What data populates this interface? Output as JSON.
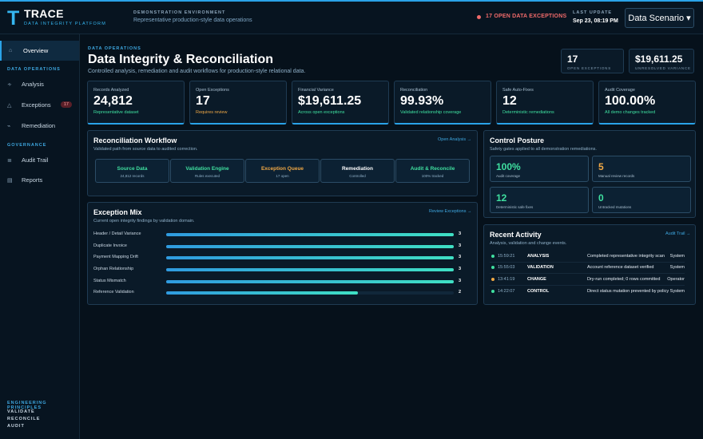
{
  "brand": {
    "logo_letter": "T",
    "name": "TRACE",
    "tagline": "DATA INTEGRITY PLATFORM",
    "accent": "#2aa3e8"
  },
  "header": {
    "env_label": "DEMONSTRATION ENVIRONMENT",
    "env_desc": "Representative production-style data operations",
    "exceptions_alert": "17 OPEN DATA EXCEPTIONS",
    "last_update_label": "LAST UPDATE",
    "last_update_value": "Sep 23, 08:19 PM",
    "scenario_button": "Data Scenario",
    "scenario_caret": "▾"
  },
  "sidebar": {
    "items": [
      {
        "label": "Overview",
        "icon": "home-icon",
        "glyph": "⌂"
      },
      {
        "label": "Analysis",
        "icon": "analysis-icon",
        "glyph": "∻"
      },
      {
        "label": "Exceptions",
        "icon": "warning-icon",
        "glyph": "△",
        "badge": "17"
      },
      {
        "label": "Remediation",
        "icon": "wrench-icon",
        "glyph": "⌁"
      },
      {
        "label": "Audit Trail",
        "icon": "list-icon",
        "glyph": "≣"
      },
      {
        "label": "Reports",
        "icon": "report-icon",
        "glyph": "▤"
      }
    ],
    "sections": [
      "DATA OPERATIONS",
      "GOVERNANCE"
    ],
    "principles_title": "ENGINEERING PRINCIPLES",
    "principles": [
      "VALIDATE",
      "RECONCILE",
      "AUDIT"
    ]
  },
  "page": {
    "kicker": "DATA OPERATIONS",
    "title": "Data Integrity & Reconciliation",
    "subtitle": "Controlled analysis, remediation and audit workflows for production-style relational data.",
    "summary": [
      {
        "value": "17",
        "label": "OPEN EXCEPTIONS"
      },
      {
        "value": "$19,611.25",
        "label": "UNRESOLVED VARIANCE"
      }
    ]
  },
  "kpis": [
    {
      "label": "Records Analyzed",
      "value": "24,812",
      "sub": "Representative dataset",
      "sub_color": "#3fe0a0"
    },
    {
      "label": "Open Exceptions",
      "value": "17",
      "sub": "Requires review",
      "sub_color": "#f0a845"
    },
    {
      "label": "Financial Variance",
      "value": "$19,611.25",
      "sub": "Across open exceptions",
      "sub_color": "#3fe0a0"
    },
    {
      "label": "Reconciliation",
      "value": "99.93%",
      "sub": "Validated relationship coverage",
      "sub_color": "#3fe0a0"
    },
    {
      "label": "Safe Auto-Fixes",
      "value": "12",
      "sub": "Deterministic remediations",
      "sub_color": "#3fe0a0"
    },
    {
      "label": "Audit Coverage",
      "value": "100.00%",
      "sub": "All demo changes tracked",
      "sub_color": "#3fe0a0"
    }
  ],
  "workflow": {
    "title": "Reconciliation Workflow",
    "subtitle": "Validated path from source data to audited correction.",
    "link": "Open Analysis →",
    "arrow": "→",
    "steps": [
      {
        "name": "Source Data",
        "detail": "24,812 records",
        "color": "#3fe0a0"
      },
      {
        "name": "Validation Engine",
        "detail": "Rules executed",
        "color": "#3fe0a0"
      },
      {
        "name": "Exception Queue",
        "detail": "17 open",
        "color": "#f0a845"
      },
      {
        "name": "Remediation",
        "detail": "Controlled",
        "color": "#ffffff"
      },
      {
        "name": "Audit & Reconcile",
        "detail": "100% tracked",
        "color": "#3fe0a0"
      }
    ]
  },
  "exception_mix": {
    "title": "Exception Mix",
    "subtitle": "Current open integrity findings by validation domain.",
    "link": "Review Exceptions →",
    "max": 3,
    "rows": [
      {
        "label": "Header / Detail Variance",
        "count": 3
      },
      {
        "label": "Duplicate Invoice",
        "count": 3
      },
      {
        "label": "Payment Mapping Drift",
        "count": 3
      },
      {
        "label": "Orphan Relationship",
        "count": 3
      },
      {
        "label": "Status Mismatch",
        "count": 3
      },
      {
        "label": "Reference Validation",
        "count": 2
      }
    ]
  },
  "posture": {
    "title": "Control Posture",
    "subtitle": "Safety gates applied to all demonstration remediations.",
    "items": [
      {
        "value": "100%",
        "label": "Audit coverage",
        "color": "#3fe0a0"
      },
      {
        "value": "5",
        "label": "Manual review records",
        "color": "#f0a845"
      },
      {
        "value": "12",
        "label": "Deterministic safe fixes",
        "color": "#3fe0a0"
      },
      {
        "value": "0",
        "label": "Untracked mutations",
        "color": "#3fe0a0"
      }
    ]
  },
  "activity": {
    "title": "Recent Activity",
    "subtitle": "Analysis, validation and change events.",
    "link": "Audit Trail →",
    "rows": [
      {
        "time": "15:59:21",
        "type": "ANALYSIS",
        "desc": "Completed representative integrity scan",
        "actor": "System",
        "dot": "#3fe0a0"
      },
      {
        "time": "15:55:03",
        "type": "VALIDATION",
        "desc": "Account reference dataset verified",
        "actor": "System",
        "dot": "#3fe0a0"
      },
      {
        "time": "13:41:19",
        "type": "CHANGE",
        "desc": "Dry-run completed; 0 rows committed",
        "actor": "Operator",
        "dot": "#f0a845"
      },
      {
        "time": "14:22:07",
        "type": "CONTROL",
        "desc": "Direct status mutation prevented by policy",
        "actor": "System",
        "dot": "#3fe0a0"
      }
    ]
  }
}
